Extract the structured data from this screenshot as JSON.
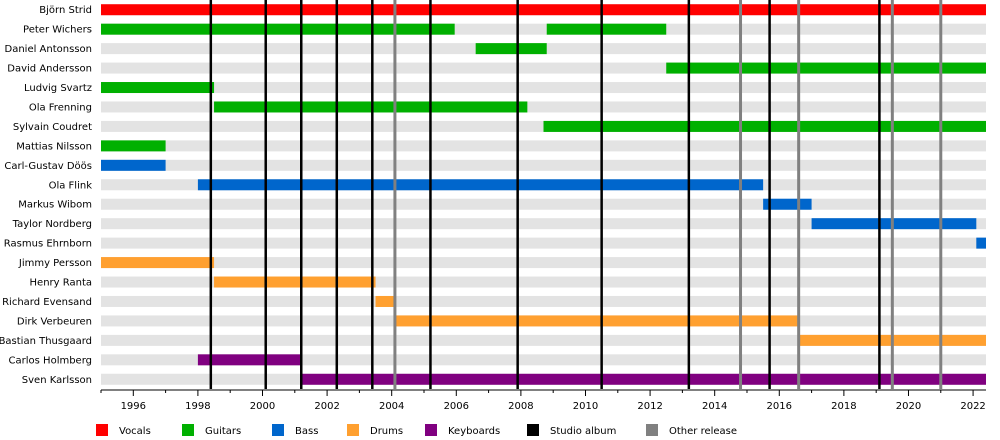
{
  "chart_data": {
    "type": "timeline",
    "title": "",
    "xlabel": "",
    "ylabel": "",
    "xlim": [
      1995.0,
      2022.4
    ],
    "x_ticks": [
      "1996",
      "1998",
      "2000",
      "2002",
      "2004",
      "2006",
      "2008",
      "2010",
      "2012",
      "2014",
      "2016",
      "2018",
      "2020",
      "2022"
    ],
    "grid": true,
    "legend_position": "bottom",
    "roles": [
      {
        "key": "vocals",
        "name": "Vocals",
        "color": "#ff0000"
      },
      {
        "key": "guitars",
        "name": "Guitars",
        "color": "#00b000"
      },
      {
        "key": "bass",
        "name": "Bass",
        "color": "#0066cc"
      },
      {
        "key": "drums",
        "name": "Drums",
        "color": "#ffa030"
      },
      {
        "key": "keyboards",
        "name": "Keyboards",
        "color": "#800080"
      }
    ],
    "members": [
      {
        "name": "Björn Strid",
        "periods": [
          {
            "role": "vocals",
            "start": 1995.0,
            "end": 2022.4
          }
        ]
      },
      {
        "name": "Peter Wichers",
        "periods": [
          {
            "role": "guitars",
            "start": 1995.0,
            "end": 2005.95
          },
          {
            "role": "guitars",
            "start": 2008.8,
            "end": 2012.5
          }
        ]
      },
      {
        "name": "Daniel Antonsson",
        "periods": [
          {
            "role": "guitars",
            "start": 2006.6,
            "end": 2008.8
          }
        ]
      },
      {
        "name": "David Andersson",
        "periods": [
          {
            "role": "guitars",
            "start": 2012.5,
            "end": 2022.4
          }
        ]
      },
      {
        "name": "Ludvig Svartz",
        "periods": [
          {
            "role": "guitars",
            "start": 1995.0,
            "end": 1998.5
          }
        ]
      },
      {
        "name": "Ola Frenning",
        "periods": [
          {
            "role": "guitars",
            "start": 1998.5,
            "end": 2008.2
          }
        ]
      },
      {
        "name": "Sylvain Coudret",
        "periods": [
          {
            "role": "guitars",
            "start": 2008.7,
            "end": 2022.4
          }
        ]
      },
      {
        "name": "Mattias Nilsson",
        "periods": [
          {
            "role": "guitars",
            "start": 1995.0,
            "end": 1997.0
          }
        ]
      },
      {
        "name": "Carl-Gustav Döös",
        "periods": [
          {
            "role": "bass",
            "start": 1995.0,
            "end": 1997.0
          }
        ]
      },
      {
        "name": "Ola Flink",
        "periods": [
          {
            "role": "bass",
            "start": 1998.0,
            "end": 2015.5
          }
        ]
      },
      {
        "name": "Markus Wibom",
        "periods": [
          {
            "role": "bass",
            "start": 2015.5,
            "end": 2017.0
          }
        ]
      },
      {
        "name": "Taylor Nordberg",
        "periods": [
          {
            "role": "bass",
            "start": 2017.0,
            "end": 2022.1
          }
        ]
      },
      {
        "name": "Rasmus Ehrnborn",
        "periods": [
          {
            "role": "bass",
            "start": 2022.1,
            "end": 2022.4
          }
        ]
      },
      {
        "name": "Jimmy Persson",
        "periods": [
          {
            "role": "drums",
            "start": 1995.0,
            "end": 1998.5
          }
        ]
      },
      {
        "name": "Henry Ranta",
        "periods": [
          {
            "role": "drums",
            "start": 1998.5,
            "end": 2003.5
          }
        ]
      },
      {
        "name": "Richard Evensand",
        "periods": [
          {
            "role": "drums",
            "start": 2003.5,
            "end": 2004.1
          }
        ]
      },
      {
        "name": "Dirk Verbeuren",
        "periods": [
          {
            "role": "drums",
            "start": 2004.1,
            "end": 2016.6
          }
        ]
      },
      {
        "name": "Bastian Thusgaard",
        "periods": [
          {
            "role": "drums",
            "start": 2016.6,
            "end": 2022.4
          }
        ]
      },
      {
        "name": "Carlos Holmberg",
        "periods": [
          {
            "role": "keyboards",
            "start": 1998.0,
            "end": 2001.2
          }
        ]
      },
      {
        "name": "Sven Karlsson",
        "periods": [
          {
            "role": "keyboards",
            "start": 2001.2,
            "end": 2022.4
          }
        ]
      }
    ],
    "studio_albums": [
      1998.4,
      2000.1,
      2001.2,
      2002.3,
      2003.4,
      2005.2,
      2007.9,
      2010.5,
      2013.2,
      2015.7,
      2019.1
    ],
    "other_releases": [
      2004.1,
      2014.8,
      2016.6,
      2019.5,
      2021.0
    ],
    "legend": [
      {
        "label": "Vocals",
        "color": "#ff0000"
      },
      {
        "label": "Guitars",
        "color": "#00b000"
      },
      {
        "label": "Bass",
        "color": "#0066cc"
      },
      {
        "label": "Drums",
        "color": "#ffa030"
      },
      {
        "label": "Keyboards",
        "color": "#800080"
      },
      {
        "label": "Studio album",
        "color": "#000000"
      },
      {
        "label": "Other release",
        "color": "#808080"
      }
    ]
  }
}
